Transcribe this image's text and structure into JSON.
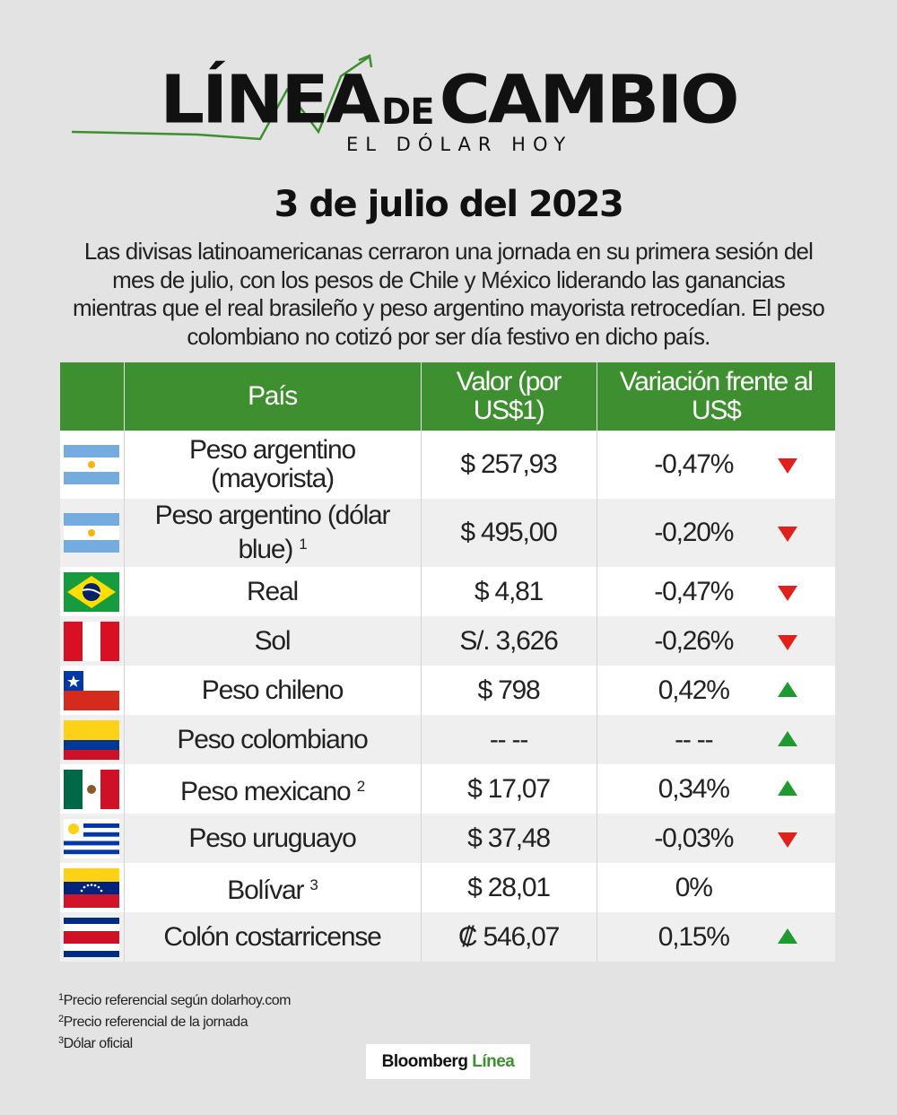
{
  "logo": {
    "word1": "LÍNEA",
    "word_de": "DE",
    "word2": "CAMBIO",
    "subtitle": "EL DÓLAR HOY",
    "accent_color": "#3d8f2f"
  },
  "date_title": "3 de julio del 2023",
  "intro": "Las divisas latinoamericanas cerraron una jornada en su primera sesión del mes de julio, con los pesos de Chile y México liderando las ganancias mientras que el real brasileño y peso argentino mayorista retrocedían. El peso colombiano no cotizó por ser día festivo en dicho país.",
  "table": {
    "headers": [
      "",
      "País",
      "Valor (por US$1)",
      "Variación frente al US$"
    ],
    "header_color": "#3d8f2f",
    "rows": [
      {
        "flag": "argentina-flag",
        "name": "Peso argentino (mayorista)",
        "note": "",
        "value": "$ 257,93",
        "variation": "-0,47%",
        "trend": "down"
      },
      {
        "flag": "argentina-flag",
        "name": "Peso argentino (dólar blue)",
        "note": "1",
        "value": "$ 495,00",
        "variation": "-0,20%",
        "trend": "down"
      },
      {
        "flag": "brazil-flag",
        "name": "Real",
        "note": "",
        "value": "$ 4,81",
        "variation": "-0,47%",
        "trend": "down"
      },
      {
        "flag": "peru-flag",
        "name": "Sol",
        "note": "",
        "value": "S/. 3,626",
        "variation": "-0,26%",
        "trend": "down"
      },
      {
        "flag": "chile-flag",
        "name": "Peso chileno",
        "note": "",
        "value": "$ 798",
        "variation": "0,42%",
        "trend": "up"
      },
      {
        "flag": "colombia-flag",
        "name": "Peso colombiano",
        "note": "",
        "value": "-- --",
        "variation": "-- --",
        "trend": "up"
      },
      {
        "flag": "mexico-flag",
        "name": "Peso mexicano",
        "note": "2",
        "value": "$ 17,07",
        "variation": "0,34%",
        "trend": "up"
      },
      {
        "flag": "uruguay-flag",
        "name": "Peso uruguayo",
        "note": "",
        "value": "$ 37,48",
        "variation": "-0,03%",
        "trend": "down"
      },
      {
        "flag": "venezuela-flag",
        "name": "Bolívar",
        "note": "3",
        "value": "$ 28,01",
        "variation": "0%",
        "trend": "none"
      },
      {
        "flag": "costa-rica-flag",
        "name": "Colón costarricense",
        "note": "",
        "value": "₡ 546,07",
        "variation": "0,15%",
        "trend": "up"
      }
    ],
    "down_color": "#e0211b",
    "up_color": "#1e9a2f"
  },
  "footnotes": [
    {
      "mark": "1",
      "text": "Precio referencial según dolarhoy.com"
    },
    {
      "mark": "2",
      "text": "Precio referencial de la jornada"
    },
    {
      "mark": "3",
      "text": "Dólar oficial"
    }
  ],
  "brand": {
    "part1": "Bloomberg",
    "part2": "Línea"
  }
}
